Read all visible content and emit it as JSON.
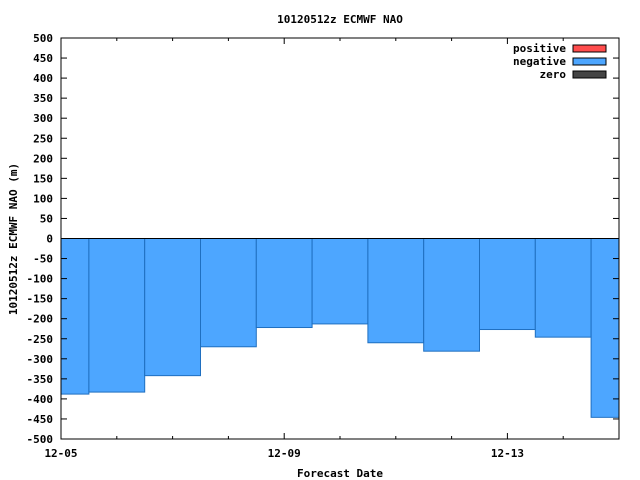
{
  "chart_data": {
    "type": "bar",
    "title": "10120512z ECMWF NAO",
    "xlabel": "Forecast Date",
    "ylabel": "10120512z ECMWF NAO (m)",
    "ylim": [
      -500,
      500
    ],
    "yticks": [
      500,
      450,
      400,
      350,
      300,
      250,
      200,
      150,
      100,
      50,
      0,
      -50,
      -100,
      -150,
      -200,
      -250,
      -300,
      -350,
      -400,
      -450,
      -500
    ],
    "xtick_labels": [
      "12-05",
      "12-09",
      "12-13"
    ],
    "legend": {
      "placement": "top-right",
      "entries": [
        {
          "label": "positive",
          "color": "#ff4d4d"
        },
        {
          "label": "negative",
          "color": "#4da6ff"
        },
        {
          "label": "zero",
          "color": "#444444"
        }
      ]
    },
    "x_start": "12-05",
    "x_end": "12-15",
    "bar_width_days": 1,
    "series": [
      {
        "name": "negative",
        "bars": [
          {
            "x_start": "12-04 12:00",
            "x_end": "12-05 12:00",
            "value": -388
          },
          {
            "x_start": "12-05 12:00",
            "x_end": "12-06 12:00",
            "value": -383
          },
          {
            "x_start": "12-06 12:00",
            "x_end": "12-07 12:00",
            "value": -342
          },
          {
            "x_start": "12-07 12:00",
            "x_end": "12-08 12:00",
            "value": -270
          },
          {
            "x_start": "12-08 12:00",
            "x_end": "12-09 12:00",
            "value": -222
          },
          {
            "x_start": "12-09 12:00",
            "x_end": "12-10 12:00",
            "value": -213
          },
          {
            "x_start": "12-10 12:00",
            "x_end": "12-11 12:00",
            "value": -260
          },
          {
            "x_start": "12-11 12:00",
            "x_end": "12-12 12:00",
            "value": -281
          },
          {
            "x_start": "12-12 12:00",
            "x_end": "12-13 12:00",
            "value": -227
          },
          {
            "x_start": "12-13 12:00",
            "x_end": "12-14 12:00",
            "value": -246
          },
          {
            "x_start": "12-14 12:00",
            "x_end": "12-15 12:00",
            "value": -446
          }
        ]
      }
    ]
  }
}
